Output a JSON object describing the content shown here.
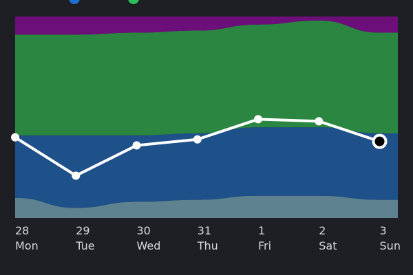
{
  "chart_data": {
    "type": "area",
    "stacked": true,
    "categories": [
      {
        "day": "28",
        "weekday": "Mon"
      },
      {
        "day": "29",
        "weekday": "Tue"
      },
      {
        "day": "30",
        "weekday": "Wed"
      },
      {
        "day": "31",
        "weekday": "Thu"
      },
      {
        "day": "1",
        "weekday": "Fri"
      },
      {
        "day": "2",
        "weekday": "Sat"
      },
      {
        "day": "3",
        "weekday": "Sun"
      }
    ],
    "ylim": [
      0,
      100
    ],
    "grid": false,
    "series": [
      {
        "key": "slate",
        "color": "#5f8291",
        "values": [
          10,
          5,
          8,
          9,
          11,
          11,
          9
        ]
      },
      {
        "key": "blue",
        "color": "#1e518a",
        "values": [
          31,
          36,
          33,
          33,
          34,
          34,
          33
        ]
      },
      {
        "key": "green",
        "color": "#2a8641",
        "values": [
          50,
          50,
          51,
          51,
          51,
          53,
          50
        ]
      },
      {
        "key": "purple",
        "color": "#6d0f7a",
        "values": [
          9,
          9,
          8,
          7,
          4,
          2,
          8
        ]
      }
    ],
    "line": {
      "color": "#ffffff",
      "values": [
        40,
        21,
        36,
        39,
        49,
        48,
        38
      ],
      "highlight_index": 6
    }
  },
  "legend_top_colors": [
    "#1e6fd0",
    "#2fbf5a"
  ],
  "legend_bottom": [
    {
      "text": "",
      "color": "#b0b0b0"
    },
    {
      "text": "",
      "color": "#1e6fd0"
    },
    {
      "text": "",
      "color": "#2fbf5a"
    },
    {
      "text": "",
      "color": "#b0177a"
    }
  ]
}
